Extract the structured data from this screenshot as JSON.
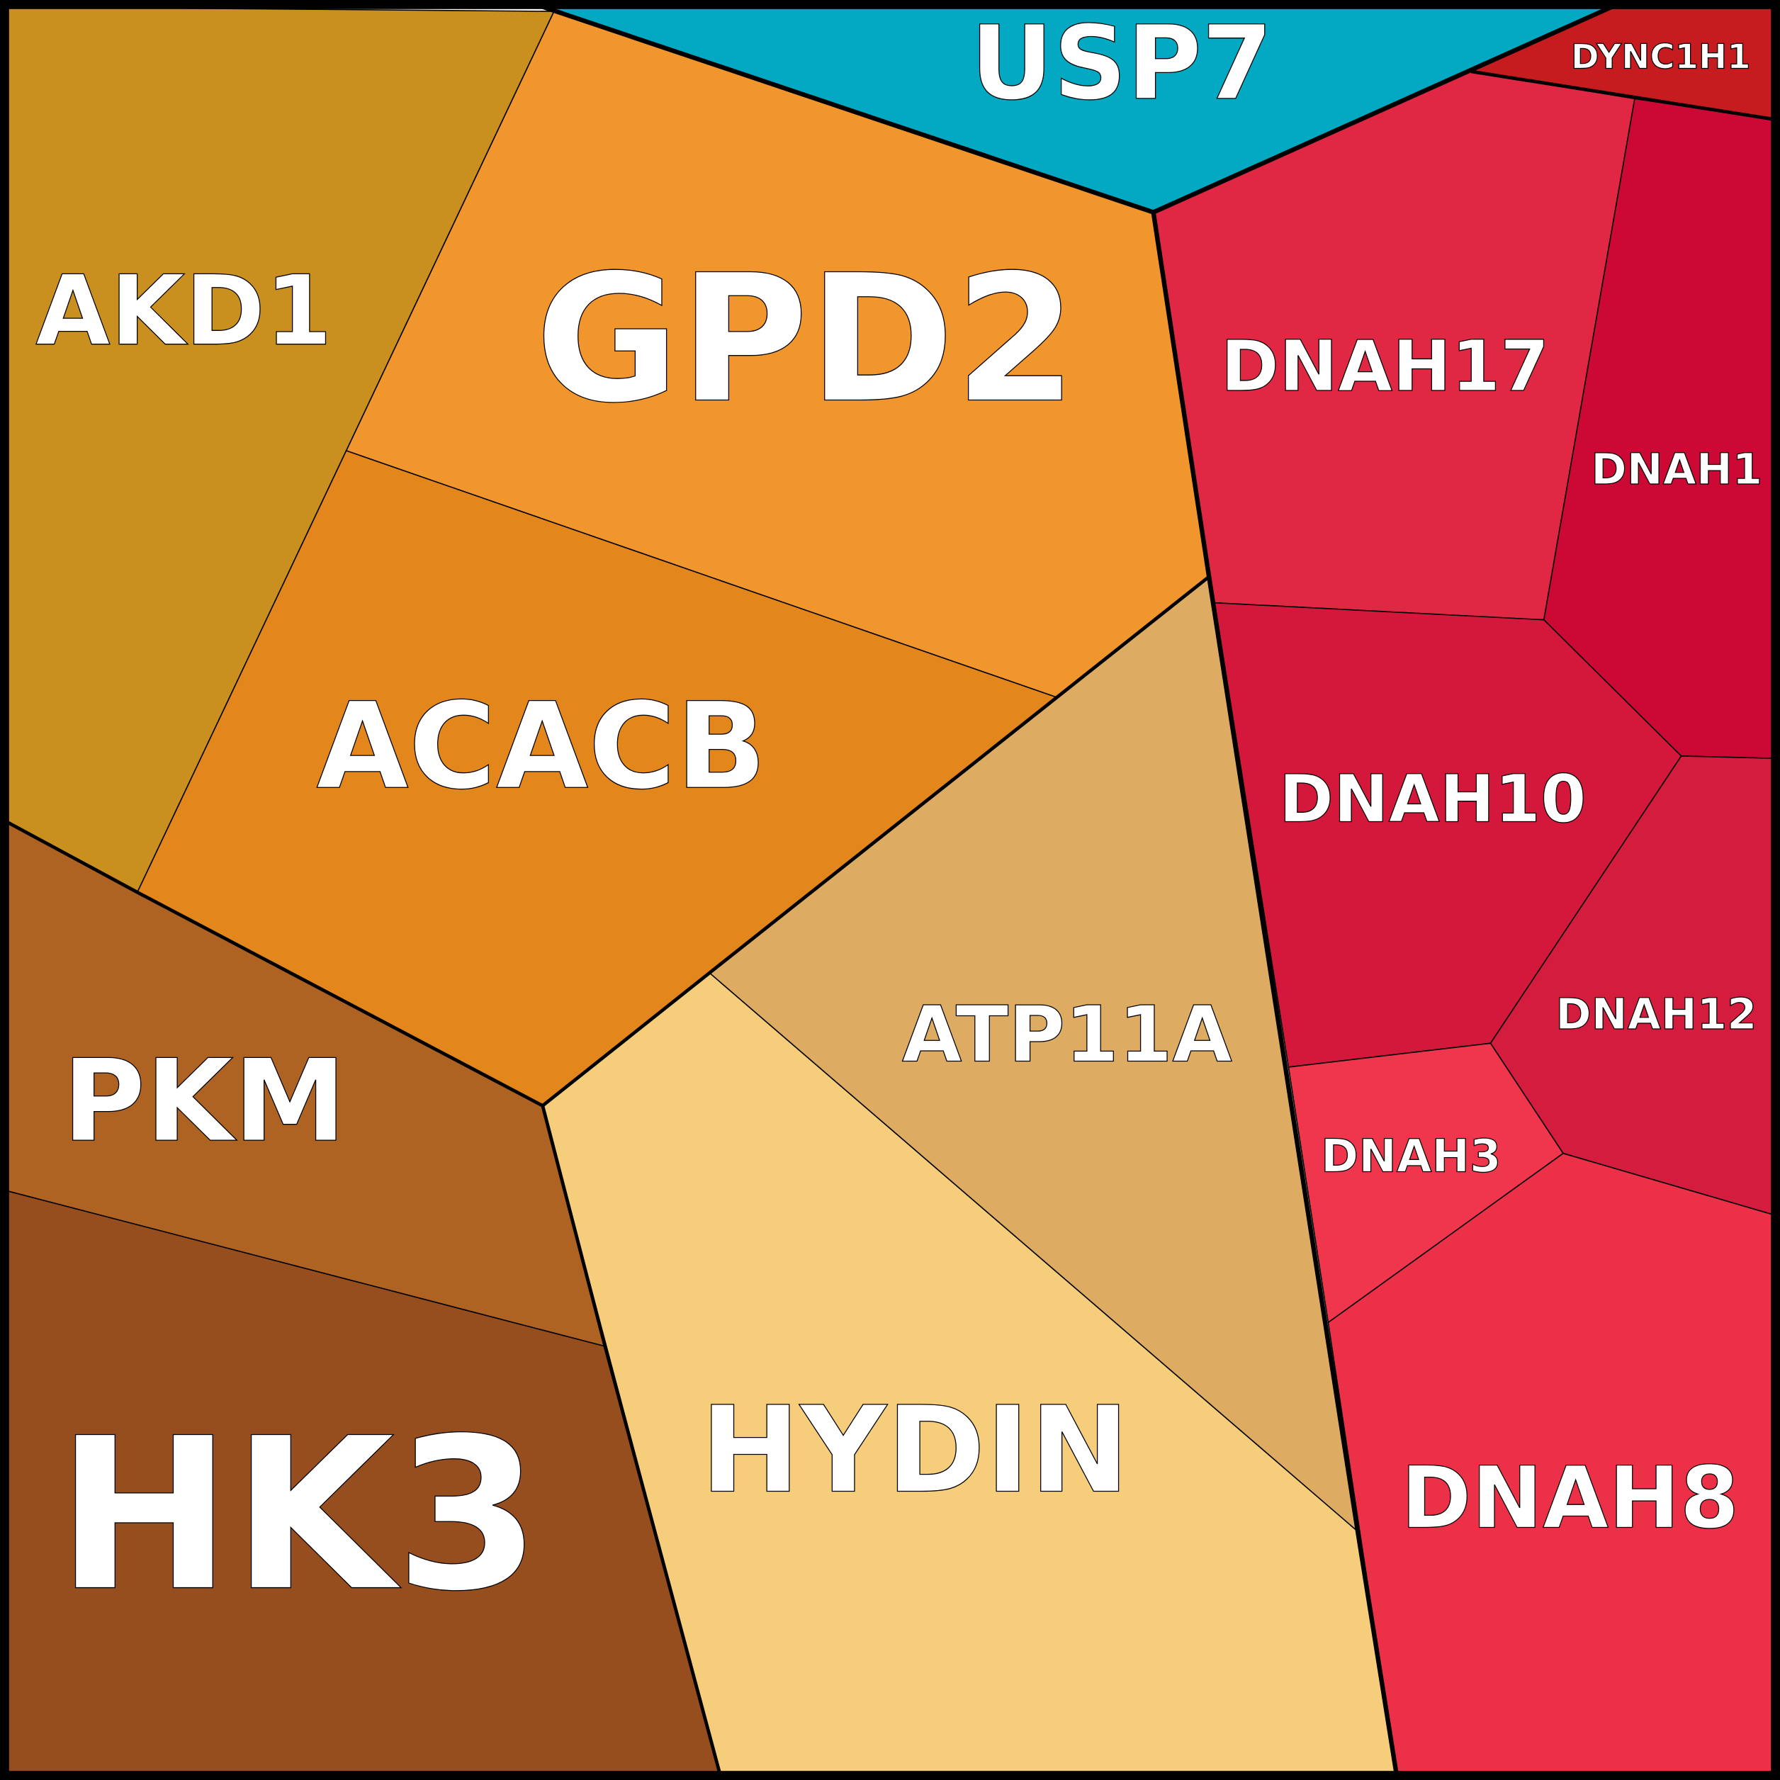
{
  "cells": [
    {
      "label": "USP7",
      "color": "#03a8c2"
    },
    {
      "label": "DYNC1H1",
      "color": "#c71c1f"
    },
    {
      "label": "GPD2",
      "color": "#f1952d"
    },
    {
      "label": "AKD1",
      "color": "#c9901f"
    },
    {
      "label": "ACACB",
      "color": "#e3871d"
    },
    {
      "label": "PKM",
      "color": "#ae6322"
    },
    {
      "label": "HK3",
      "color": "#964e1e"
    },
    {
      "label": "HYDIN",
      "color": "#f5cd7b"
    },
    {
      "label": "ATP11A",
      "color": "#deab62"
    },
    {
      "label": "DNAH17",
      "color": "#e02743"
    },
    {
      "label": "DNAH1",
      "color": "#cc0935"
    },
    {
      "label": "DNAH10",
      "color": "#d4183b"
    },
    {
      "label": "DNAH12",
      "color": "#d41c3e"
    },
    {
      "label": "DNAH3",
      "color": "#f0364d"
    },
    {
      "label": "DNAH8",
      "color": "#ec3048"
    }
  ]
}
